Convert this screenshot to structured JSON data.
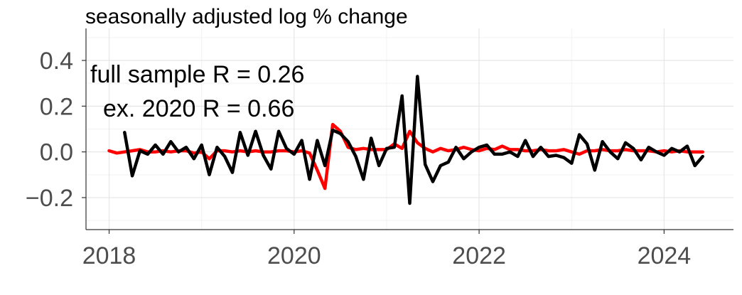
{
  "chart_data": {
    "type": "line",
    "title": "seasonally adjusted log % change",
    "xlabel": "",
    "ylabel": "",
    "xlim": [
      2017.75,
      2024.75
    ],
    "ylim": [
      -0.34,
      0.54
    ],
    "x_ticks": [
      2018,
      2020,
      2022,
      2024
    ],
    "x_tick_labels": [
      "2018",
      "2020",
      "2022",
      "2024"
    ],
    "y_ticks": [
      -0.2,
      0.0,
      0.2,
      0.4
    ],
    "y_tick_labels": [
      "−0.2",
      "0.0",
      "0.2",
      "0.4"
    ],
    "grid": true,
    "annotations": [
      {
        "text": "full sample R = 0.26"
      },
      {
        "text": "ex. 2020 R = 0.66"
      }
    ],
    "series": [
      {
        "color": "#ff0000",
        "x": [
          2018.0,
          2018.083,
          2018.167,
          2018.25,
          2018.333,
          2018.417,
          2018.5,
          2018.583,
          2018.667,
          2018.75,
          2018.833,
          2018.917,
          2019.0,
          2019.083,
          2019.167,
          2019.25,
          2019.333,
          2019.417,
          2019.5,
          2019.583,
          2019.667,
          2019.75,
          2019.833,
          2019.917,
          2020.0,
          2020.083,
          2020.167,
          2020.25,
          2020.333,
          2020.417,
          2020.5,
          2020.583,
          2020.667,
          2020.75,
          2020.833,
          2020.917,
          2021.0,
          2021.083,
          2021.167,
          2021.25,
          2021.333,
          2021.417,
          2021.5,
          2021.583,
          2021.667,
          2021.75,
          2021.833,
          2021.917,
          2022.0,
          2022.083,
          2022.167,
          2022.25,
          2022.333,
          2022.417,
          2022.5,
          2022.583,
          2022.667,
          2022.75,
          2022.833,
          2022.917,
          2023.0,
          2023.083,
          2023.167,
          2023.25,
          2023.333,
          2023.417,
          2023.5,
          2023.583,
          2023.667,
          2023.75,
          2023.833,
          2023.917,
          2024.0,
          2024.083,
          2024.167,
          2024.25,
          2024.333,
          2024.417
        ],
        "values": [
          0.005,
          -0.005,
          0.0,
          0.005,
          0.01,
          0.0,
          0.0,
          0.005,
          0.0,
          0.005,
          0.005,
          -0.005,
          0.0,
          -0.03,
          0.005,
          0.005,
          0.0,
          0.005,
          0.0,
          0.005,
          0.0,
          0.0,
          0.005,
          0.005,
          0.0,
          0.005,
          -0.005,
          -0.08,
          -0.16,
          0.12,
          0.09,
          0.02,
          0.01,
          0.015,
          0.01,
          0.01,
          0.01,
          0.035,
          0.015,
          0.09,
          0.04,
          0.015,
          0.0,
          0.015,
          0.005,
          0.01,
          0.02,
          0.01,
          0.005,
          0.015,
          0.01,
          0.025,
          0.01,
          0.01,
          0.005,
          0.005,
          0.01,
          0.005,
          0.005,
          0.01,
          0.0,
          -0.01,
          0.005,
          0.005,
          0.01,
          0.005,
          0.005,
          0.01,
          0.005,
          0.005,
          0.005,
          0.0,
          0.005,
          0.0,
          0.005,
          0.0,
          0.0,
          0.0
        ]
      },
      {
        "color": "#000000",
        "x": [
          2018.167,
          2018.25,
          2018.333,
          2018.417,
          2018.5,
          2018.583,
          2018.667,
          2018.75,
          2018.833,
          2018.917,
          2019.0,
          2019.083,
          2019.167,
          2019.25,
          2019.333,
          2019.417,
          2019.5,
          2019.583,
          2019.667,
          2019.75,
          2019.833,
          2019.917,
          2020.0,
          2020.083,
          2020.167,
          2020.25,
          2020.333,
          2020.417,
          2020.5,
          2020.583,
          2020.667,
          2020.75,
          2020.833,
          2020.917,
          2021.0,
          2021.083,
          2021.167,
          2021.25,
          2021.333,
          2021.417,
          2021.5,
          2021.583,
          2021.667,
          2021.75,
          2021.833,
          2021.917,
          2022.0,
          2022.083,
          2022.167,
          2022.25,
          2022.333,
          2022.417,
          2022.5,
          2022.583,
          2022.667,
          2022.75,
          2022.833,
          2022.917,
          2023.0,
          2023.083,
          2023.167,
          2023.25,
          2023.333,
          2023.417,
          2023.5,
          2023.583,
          2023.667,
          2023.75,
          2023.833,
          2023.917,
          2024.0,
          2024.083,
          2024.167,
          2024.25,
          2024.333,
          2024.417
        ],
        "values": [
          0.085,
          -0.105,
          0.005,
          -0.01,
          0.03,
          -0.01,
          0.045,
          0.0,
          0.02,
          -0.03,
          0.03,
          -0.1,
          0.02,
          -0.02,
          -0.09,
          0.085,
          -0.015,
          0.09,
          -0.015,
          -0.075,
          0.09,
          0.015,
          -0.01,
          0.05,
          -0.12,
          0.05,
          -0.06,
          0.095,
          0.08,
          0.045,
          -0.02,
          -0.12,
          0.06,
          -0.06,
          0.015,
          0.02,
          0.245,
          -0.225,
          0.33,
          -0.055,
          -0.13,
          -0.06,
          -0.045,
          0.02,
          -0.03,
          0.0,
          0.02,
          0.03,
          -0.01,
          -0.01,
          0.0,
          -0.02,
          0.05,
          -0.02,
          0.02,
          -0.02,
          -0.015,
          -0.025,
          -0.05,
          0.075,
          0.035,
          -0.08,
          0.045,
          0.0,
          -0.03,
          0.04,
          0.015,
          -0.035,
          0.02,
          0.0,
          -0.015,
          0.015,
          0.0,
          0.025,
          -0.06,
          -0.02
        ]
      }
    ]
  }
}
